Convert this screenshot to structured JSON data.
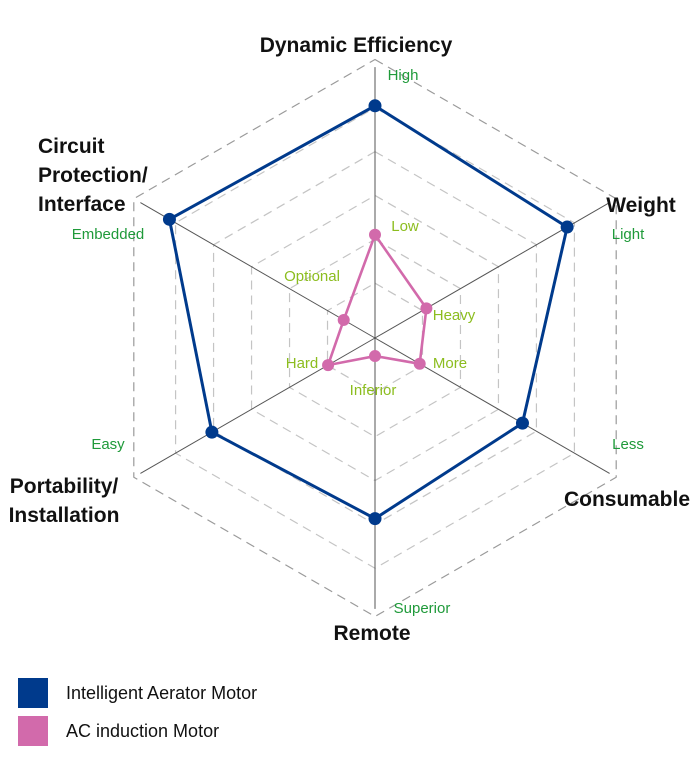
{
  "chart_data": {
    "type": "radar",
    "axes": [
      {
        "title": [
          "Dynamic Efficiency"
        ],
        "outer_label": "High",
        "inner_label": "Low"
      },
      {
        "title": [
          "Weight"
        ],
        "outer_label": "Light",
        "inner_label": "Heavy"
      },
      {
        "title": [
          "Consumable"
        ],
        "outer_label": "Less",
        "inner_label": "More"
      },
      {
        "title": [
          "Remote"
        ],
        "outer_label": "Superior",
        "inner_label": "Inferior"
      },
      {
        "title": [
          "Portability/",
          "Installation"
        ],
        "outer_label": "Easy",
        "inner_label": "Hard"
      },
      {
        "title": [
          "Circuit",
          "Protection/",
          "Interface"
        ],
        "outer_label": "Embedded",
        "inner_label": "Optional"
      }
    ],
    "range": [
      0,
      1
    ],
    "grid": true,
    "legend_position": "bottom-left",
    "series": [
      {
        "name": "Intelligent Aerator Motor",
        "color": "#003a8c",
        "values": [
          0.9,
          0.86,
          0.66,
          0.7,
          0.73,
          0.92
        ]
      },
      {
        "name": "AC induction Motor",
        "color": "#d26aab",
        "values": [
          0.4,
          0.23,
          0.2,
          0.07,
          0.21,
          0.14
        ]
      }
    ]
  }
}
